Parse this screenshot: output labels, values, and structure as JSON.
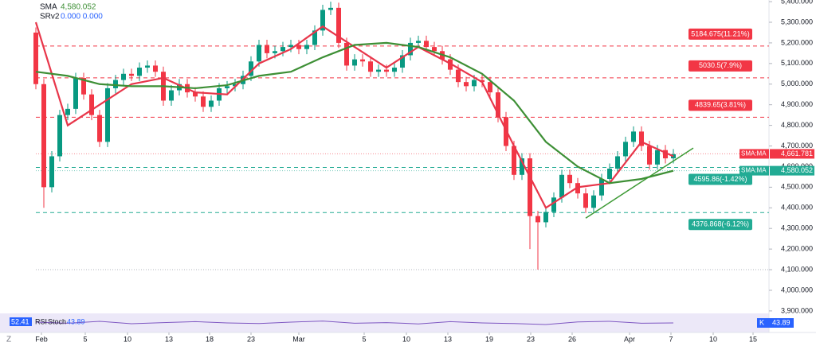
{
  "chart_data": {
    "type": "candlestick",
    "legend": {
      "sma_label": "SMA",
      "sma_value": "4,580.052",
      "srv_label": "SRv2",
      "srv_values": "0.000  0.000"
    },
    "x_index_name": "candle",
    "xlim": [
      -4.5,
      92
    ],
    "xticks": [
      {
        "value": 0.7,
        "label": "Feb"
      },
      {
        "value": 6.2,
        "label": "5"
      },
      {
        "value": 11.5,
        "label": "10"
      },
      {
        "value": 16.7,
        "label": "13"
      },
      {
        "value": 21.8,
        "label": "18"
      },
      {
        "value": 27,
        "label": "23"
      },
      {
        "value": 33,
        "label": "Mar"
      },
      {
        "value": 41.2,
        "label": "5"
      },
      {
        "value": 46.5,
        "label": "10"
      },
      {
        "value": 51.7,
        "label": "13"
      },
      {
        "value": 56.9,
        "label": "19"
      },
      {
        "value": 62.1,
        "label": "23"
      },
      {
        "value": 67.3,
        "label": "26"
      },
      {
        "value": 74.5,
        "label": "Apr"
      },
      {
        "value": 79.7,
        "label": "7"
      },
      {
        "value": 85,
        "label": "10"
      },
      {
        "value": 90,
        "label": "15"
      }
    ],
    "ylim": [
      3888,
      5408
    ],
    "yticks": [
      {
        "value": 5400,
        "label": "5,400.000"
      },
      {
        "value": 5300,
        "label": "5,300.000"
      },
      {
        "value": 5200,
        "label": "5,200.000"
      },
      {
        "value": 5100,
        "label": "5,100.000"
      },
      {
        "value": 5000,
        "label": "5,000.000"
      },
      {
        "value": 4900,
        "label": "4,900.000"
      },
      {
        "value": 4800,
        "label": "4,800.000"
      },
      {
        "value": 4700,
        "label": "4,700.000"
      },
      {
        "value": 4600,
        "label": "4,600.000"
      },
      {
        "value": 4500,
        "label": "4,500.000"
      },
      {
        "value": 4400,
        "label": "4,400.000"
      },
      {
        "value": 4300,
        "label": "4,300.000"
      },
      {
        "value": 4200,
        "label": "4,200.000"
      },
      {
        "value": 4100,
        "label": "4,100.000"
      },
      {
        "value": 4000,
        "label": "4,000.000"
      },
      {
        "value": 3900,
        "label": "3,900.000"
      }
    ],
    "up_color": "#089981",
    "down_color": "#f23645",
    "open": [
      5250,
      5000,
      4500,
      4650,
      4850,
      4880,
      5030,
      4950,
      4850,
      4720,
      4980,
      5020,
      5050,
      5040,
      5080,
      5090,
      5060,
      4920,
      4970,
      5000,
      4960,
      4940,
      4890,
      4920,
      4980,
      4990,
      5000,
      5040,
      5110,
      5190,
      5150,
      5160,
      5180,
      5190,
      5170,
      5190,
      5260,
      5360,
      5370,
      5200,
      5090,
      5120,
      5110,
      5060,
      5070,
      5060,
      5080,
      5140,
      5200,
      5210,
      5180,
      5160,
      5120,
      5070,
      5010,
      4990,
      5020,
      5010,
      4960,
      4840,
      4700,
      4560,
      4640,
      4360,
      4330,
      4380,
      4450,
      4560,
      4520,
      4470,
      4400,
      4460,
      4540,
      4590,
      4650,
      4720,
      4770,
      4700,
      4610,
      4680,
      4640
    ],
    "high": [
      5275,
      5025,
      4675,
      4875,
      4905,
      5055,
      5055,
      4975,
      4875,
      5005,
      5045,
      5075,
      5075,
      5105,
      5115,
      5115,
      5085,
      4995,
      5025,
      5025,
      4985,
      4965,
      4945,
      5005,
      5015,
      5025,
      5065,
      5135,
      5215,
      5215,
      5185,
      5205,
      5215,
      5215,
      5215,
      5285,
      5385,
      5400,
      5395,
      5225,
      5145,
      5145,
      5135,
      5095,
      5095,
      5105,
      5165,
      5225,
      5235,
      5235,
      5205,
      5185,
      5145,
      5095,
      5035,
      5045,
      5045,
      5035,
      4985,
      4865,
      4725,
      4665,
      4665,
      4385,
      4405,
      4475,
      4585,
      4585,
      4545,
      4495,
      4485,
      4565,
      4615,
      4675,
      4745,
      4795,
      4795,
      4725,
      4705,
      4705,
      4685
    ],
    "low": [
      4975,
      4400,
      4475,
      4625,
      4825,
      4855,
      4925,
      4825,
      4695,
      4695,
      4955,
      4995,
      5015,
      5015,
      5055,
      5035,
      4895,
      4895,
      4945,
      4935,
      4915,
      4865,
      4865,
      4895,
      4955,
      4965,
      4975,
      5015,
      5085,
      5125,
      5125,
      5135,
      5155,
      5145,
      5145,
      5165,
      5235,
      5335,
      5175,
      5065,
      5065,
      5085,
      5035,
      5035,
      5035,
      5035,
      5055,
      5115,
      5175,
      5155,
      5135,
      5095,
      5045,
      4985,
      4965,
      4965,
      4985,
      4935,
      4815,
      4675,
      4535,
      4535,
      4200,
      4100,
      4305,
      4355,
      4425,
      4495,
      4445,
      4375,
      4375,
      4435,
      4515,
      4565,
      4625,
      4695,
      4675,
      4585,
      4585,
      4615,
      4615
    ],
    "close": [
      5000,
      4500,
      4650,
      4850,
      4880,
      5030,
      4950,
      4850,
      4720,
      4980,
      5020,
      5050,
      5040,
      5080,
      5090,
      5060,
      4920,
      4970,
      5000,
      4960,
      4940,
      4890,
      4920,
      4980,
      4990,
      5000,
      5040,
      5110,
      5190,
      5150,
      5160,
      5180,
      5190,
      5170,
      5190,
      5260,
      5360,
      5370,
      5200,
      5090,
      5120,
      5110,
      5060,
      5070,
      5060,
      5080,
      5140,
      5200,
      5210,
      5180,
      5160,
      5120,
      5070,
      5010,
      4990,
      5020,
      5010,
      4960,
      4840,
      4700,
      4560,
      4640,
      4360,
      4330,
      4380,
      4450,
      4560,
      4520,
      4470,
      4400,
      4460,
      4540,
      4590,
      4650,
      4720,
      4770,
      4700,
      4610,
      4680,
      4640,
      4660
    ],
    "series": [
      {
        "color": "#e8364a",
        "x": [
          0,
          4,
          8,
          12,
          16,
          20,
          24,
          28,
          32,
          36,
          40,
          44,
          48,
          52,
          56,
          60,
          64,
          68,
          72,
          76,
          80
        ],
        "values": [
          5300,
          4800,
          4900,
          5000,
          5030,
          4960,
          4950,
          5100,
          5170,
          5280,
          5180,
          5080,
          5180,
          5100,
          5010,
          4700,
          4400,
          4500,
          4520,
          4720,
          4650
        ]
      },
      {
        "name": "SMA",
        "color": "#3d8f35",
        "x": [
          0,
          4,
          8,
          12,
          16,
          20,
          24,
          28,
          32,
          36,
          40,
          44,
          48,
          52,
          56,
          60,
          64,
          68,
          72,
          76,
          80
        ],
        "values": [
          5060,
          5040,
          5000,
          4990,
          4990,
          4980,
          4995,
          5040,
          5060,
          5130,
          5190,
          5200,
          5180,
          5130,
          5050,
          4920,
          4720,
          4600,
          4520,
          4540,
          4580
        ]
      }
    ],
    "levels": [
      {
        "value": 5184.675,
        "label": "5184.675(11.21%)",
        "color": "#f23645"
      },
      {
        "value": 5030.5,
        "label": "5030.5(7.9%)",
        "color": "#f23645"
      },
      {
        "value": 4839.65,
        "label": "4839.65(3.81%)",
        "color": "#f23645"
      },
      {
        "value": 4595.86,
        "label": "4595.86(-1.42%)",
        "color": "#22ab94"
      },
      {
        "value": 4376.868,
        "label": "4376.868(-6.12%)",
        "color": "#22ab94"
      }
    ],
    "price_lines": [
      {
        "value": 4661.781,
        "name": "SMA:MA",
        "label": "4,661.781",
        "color": "#f23645"
      },
      {
        "value": 4580.052,
        "name": "SMA:MA",
        "label": "4,580.052",
        "color": "#22ab94"
      }
    ],
    "low_marker": 4100,
    "trendline": {
      "x": [
        69,
        82.5
      ],
      "values": [
        4350,
        4690
      ],
      "color": "#3d9a35"
    },
    "oscillator": {
      "value_label": "52.41",
      "rsi_label": "RSI",
      "stoch_label": "Stoch",
      "stoch_value": "43.89",
      "badge_label": "K",
      "badge_value": "43.89",
      "ylim": [
        0,
        100
      ],
      "values": [
        55,
        48,
        60,
        45,
        52,
        58,
        50,
        46,
        55,
        62,
        48,
        52,
        44,
        58,
        50,
        46,
        40,
        56,
        60,
        48,
        50
      ]
    },
    "corner_label": "Z"
  }
}
